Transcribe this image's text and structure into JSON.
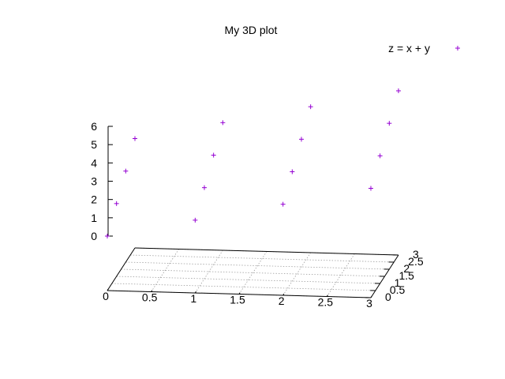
{
  "chart_data": {
    "type": "scatter",
    "title": "My 3D plot",
    "legend": {
      "label": "z = x  + y",
      "position": "top-right",
      "marker": "plus"
    },
    "colors": {
      "series": "#9400d3",
      "axes": "#000000",
      "grid": "#a0a0a0"
    },
    "grid": true,
    "xlim": [
      0,
      3
    ],
    "ylim": [
      0,
      3
    ],
    "zlim": [
      0,
      6
    ],
    "x_ticks": [
      "0",
      "0.5",
      "1",
      "1.5",
      "2",
      "2.5",
      "3"
    ],
    "y_ticks": [
      "0",
      "0.5",
      "1",
      "1.5",
      "2",
      "2.5",
      "3"
    ],
    "z_ticks": [
      "0",
      "1",
      "2",
      "3",
      "4",
      "5",
      "6"
    ],
    "series": [
      {
        "name": "z = x  + y",
        "points": [
          {
            "x": 0,
            "y": 0,
            "z": 0
          },
          {
            "x": 0,
            "y": 1,
            "z": 1
          },
          {
            "x": 0,
            "y": 2,
            "z": 2
          },
          {
            "x": 0,
            "y": 3,
            "z": 3
          },
          {
            "x": 1,
            "y": 0,
            "z": 1
          },
          {
            "x": 1,
            "y": 1,
            "z": 2
          },
          {
            "x": 1,
            "y": 2,
            "z": 3
          },
          {
            "x": 1,
            "y": 3,
            "z": 4
          },
          {
            "x": 2,
            "y": 0,
            "z": 2
          },
          {
            "x": 2,
            "y": 1,
            "z": 3
          },
          {
            "x": 2,
            "y": 2,
            "z": 4
          },
          {
            "x": 2,
            "y": 3,
            "z": 5
          },
          {
            "x": 3,
            "y": 0,
            "z": 3
          },
          {
            "x": 3,
            "y": 1,
            "z": 4
          },
          {
            "x": 3,
            "y": 2,
            "z": 5
          },
          {
            "x": 3,
            "y": 3,
            "z": 6
          }
        ]
      }
    ]
  }
}
